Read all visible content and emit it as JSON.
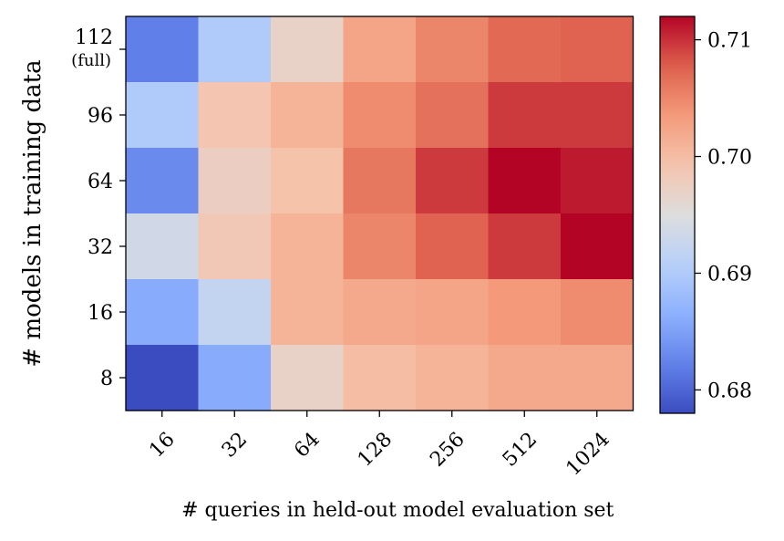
{
  "chart_data": {
    "type": "heatmap",
    "xlabel": "# queries in held-out model evaluation set",
    "ylabel": "# models in training data",
    "x_categories": [
      "16",
      "32",
      "64",
      "128",
      "256",
      "512",
      "1024"
    ],
    "y_categories": [
      "112",
      "96",
      "64",
      "32",
      "16",
      "8"
    ],
    "y_sublabels": {
      "112": "(full)"
    },
    "values": [
      [
        0.682,
        0.69,
        0.697,
        0.7025,
        0.705,
        0.707,
        0.7075
      ],
      [
        0.69,
        0.699,
        0.701,
        0.7045,
        0.7065,
        0.7095,
        0.7095
      ],
      [
        0.683,
        0.6975,
        0.6995,
        0.706,
        0.7095,
        0.712,
        0.711
      ],
      [
        0.6935,
        0.6985,
        0.701,
        0.705,
        0.7075,
        0.7095,
        0.712
      ],
      [
        0.686,
        0.692,
        0.701,
        0.702,
        0.7025,
        0.7035,
        0.7045
      ],
      [
        0.678,
        0.686,
        0.697,
        0.7,
        0.701,
        0.702,
        0.702
      ]
    ],
    "colormap": "coolwarm",
    "vmin": 0.678,
    "vmax": 0.712,
    "colorbar_ticks": [
      "0.68",
      "0.69",
      "0.70",
      "0.71"
    ],
    "colorbar_tick_values": [
      0.68,
      0.69,
      0.7,
      0.71
    ]
  }
}
